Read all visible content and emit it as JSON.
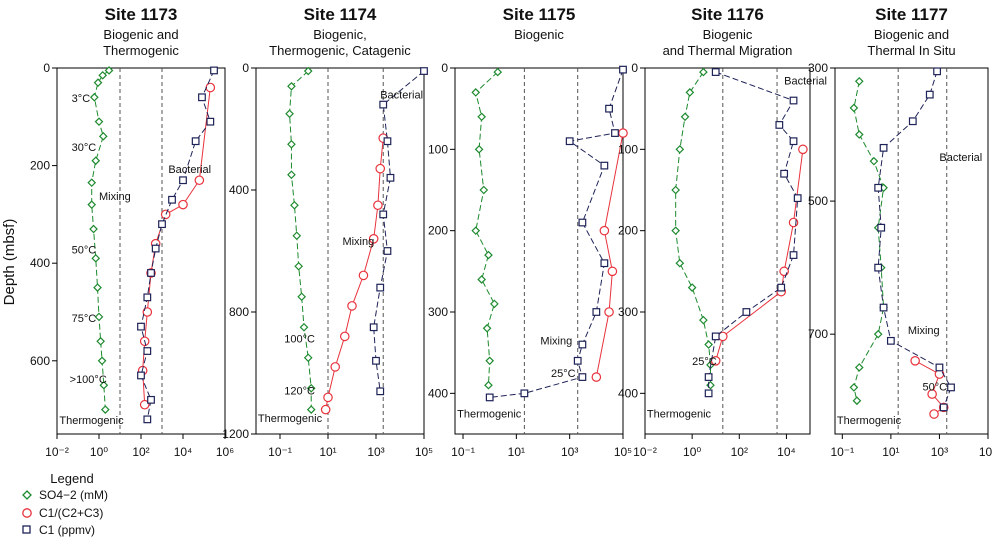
{
  "y_axis_label": "Depth (mbsf)",
  "legend": {
    "title": "Legend",
    "items": [
      {
        "label": "SO4−2 (mM)",
        "marker": "diamond",
        "color": "#1d8a2e"
      },
      {
        "label": "C1/(C2+C3)",
        "marker": "circle",
        "color": "#e8323c"
      },
      {
        "label": "C1 (ppmv)",
        "marker": "square",
        "color": "#1e2357"
      }
    ]
  },
  "chart_data": [
    {
      "type": "scatter",
      "title": "Site 1173",
      "subtitle": [
        "Biogenic and",
        "Thermogenic"
      ],
      "x_scale": "log",
      "xlim": [
        0.01,
        1000000
      ],
      "ylim": [
        750,
        0
      ],
      "x_ticks": [
        0.01,
        1,
        100,
        10000,
        1000000
      ],
      "x_tick_labels": [
        "10⁻²",
        "10⁰",
        "10²",
        "10⁴",
        "10⁶"
      ],
      "y_ticks": [
        0,
        200,
        400,
        600
      ],
      "y_tick_labels": [
        "0",
        "200",
        "400",
        "600"
      ],
      "dashed_x": [
        10,
        1000
      ],
      "annotations": [
        {
          "text": "3°C",
          "x": 0.05,
          "y": 70
        },
        {
          "text": "30°C",
          "x": 0.05,
          "y": 170
        },
        {
          "text": "Mixing",
          "x": 1.0,
          "y": 270
        },
        {
          "text": "Bacterial",
          "x": 2000,
          "y": 215
        },
        {
          "text": "50°C",
          "x": 0.05,
          "y": 380
        },
        {
          "text": "75°C",
          "x": 0.05,
          "y": 520
        },
        {
          "text": ">100°C",
          "x": 0.04,
          "y": 645
        },
        {
          "text": "Thermogenic",
          "x": 0.013,
          "y": 730
        }
      ],
      "series": [
        {
          "marker": "diamond",
          "values": [
            [
              3,
              5
            ],
            [
              1.5,
              15
            ],
            [
              0.9,
              30
            ],
            [
              0.6,
              60
            ],
            [
              1.0,
              110
            ],
            [
              1.6,
              140
            ],
            [
              0.7,
              190
            ],
            [
              0.45,
              235
            ],
            [
              0.45,
              280
            ],
            [
              0.55,
              330
            ],
            [
              0.7,
              390
            ],
            [
              0.85,
              450
            ],
            [
              1.0,
              510
            ],
            [
              1.2,
              560
            ],
            [
              1.4,
              600
            ],
            [
              1.7,
              650
            ],
            [
              2.0,
              700
            ]
          ]
        },
        {
          "marker": "circle",
          "values": [
            [
              200000,
              40
            ],
            [
              60000,
              230
            ],
            [
              10000,
              280
            ],
            [
              1500,
              300
            ],
            [
              500,
              360
            ],
            [
              300,
              420
            ],
            [
              200,
              500
            ],
            [
              150,
              560
            ],
            [
              120,
              620
            ],
            [
              150,
              690
            ]
          ]
        },
        {
          "marker": "square",
          "values": [
            [
              300000,
              5
            ],
            [
              80000,
              60
            ],
            [
              200000,
              110
            ],
            [
              40000,
              150
            ],
            [
              10000,
              230
            ],
            [
              3000,
              270
            ],
            [
              1000,
              320
            ],
            [
              500,
              370
            ],
            [
              300,
              420
            ],
            [
              200,
              470
            ],
            [
              100,
              530
            ],
            [
              200,
              580
            ],
            [
              100,
              630
            ],
            [
              300,
              680
            ],
            [
              200,
              720
            ]
          ]
        }
      ]
    },
    {
      "type": "scatter",
      "title": "Site 1174",
      "subtitle": [
        "Biogenic,",
        "Thermogenic, Catagenic"
      ],
      "x_scale": "log",
      "xlim": [
        0.01,
        100000
      ],
      "ylim": [
        1200,
        0
      ],
      "x_ticks": [
        0.1,
        10,
        1000,
        100000
      ],
      "x_tick_labels": [
        "10⁻¹",
        "10¹",
        "10³",
        "10⁵"
      ],
      "y_ticks": [
        0,
        400,
        800,
        1200
      ],
      "y_tick_labels": [
        "0",
        "400",
        "800",
        "1200"
      ],
      "dashed_x": [
        10,
        2000
      ],
      "annotations": [
        {
          "text": "Bacterial",
          "x": 1500,
          "y": 100
        },
        {
          "text": "Mixing",
          "x": 40,
          "y": 580
        },
        {
          "text": "100°C",
          "x": 0.15,
          "y": 900
        },
        {
          "text": "120°C",
          "x": 0.15,
          "y": 1070
        },
        {
          "text": "Thermogenic",
          "x": 0.012,
          "y": 1160
        }
      ],
      "series": [
        {
          "marker": "diamond",
          "values": [
            [
              1.5,
              10
            ],
            [
              0.3,
              60
            ],
            [
              0.25,
              150
            ],
            [
              0.3,
              250
            ],
            [
              0.3,
              350
            ],
            [
              0.4,
              450
            ],
            [
              0.5,
              550
            ],
            [
              0.6,
              650
            ],
            [
              0.8,
              750
            ],
            [
              1,
              850
            ],
            [
              1.5,
              950
            ],
            [
              2,
              1050
            ],
            [
              2,
              1120
            ]
          ]
        },
        {
          "marker": "circle",
          "values": [
            [
              2000,
              230
            ],
            [
              1500,
              330
            ],
            [
              1200,
              450
            ],
            [
              800,
              560
            ],
            [
              300,
              680
            ],
            [
              100,
              780
            ],
            [
              50,
              880
            ],
            [
              20,
              980
            ],
            [
              10,
              1080
            ],
            [
              8,
              1120
            ]
          ]
        },
        {
          "marker": "square",
          "values": [
            [
              100000,
              10
            ],
            [
              2000,
              120
            ],
            [
              3000,
              240
            ],
            [
              4000,
              360
            ],
            [
              2000,
              480
            ],
            [
              3000,
              600
            ],
            [
              1500,
              720
            ],
            [
              800,
              850
            ],
            [
              1000,
              960
            ],
            [
              1500,
              1060
            ]
          ]
        }
      ]
    },
    {
      "type": "scatter",
      "title": "Site 1175",
      "subtitle": [
        "Biogenic"
      ],
      "x_scale": "log",
      "xlim": [
        0.05,
        100000
      ],
      "ylim": [
        450,
        0
      ],
      "x_ticks": [
        0.1,
        10,
        1000,
        100000
      ],
      "x_tick_labels": [
        "10⁻¹",
        "10¹",
        "10³",
        "10⁵"
      ],
      "y_ticks": [
        0,
        100,
        200,
        300,
        400
      ],
      "y_tick_labels": [
        "0",
        "100",
        "200",
        "300",
        "400"
      ],
      "dashed_x": [
        20,
        2000
      ],
      "annotations": [
        {
          "text": "Mixing",
          "x": 80,
          "y": 340
        },
        {
          "text": "25°C",
          "x": 200,
          "y": 380
        },
        {
          "text": "Thermogenic",
          "x": 0.06,
          "y": 430
        }
      ],
      "series": [
        {
          "marker": "diamond",
          "values": [
            [
              2,
              5
            ],
            [
              0.3,
              30
            ],
            [
              0.5,
              60
            ],
            [
              0.4,
              100
            ],
            [
              0.6,
              150
            ],
            [
              0.3,
              200
            ],
            [
              0.9,
              230
            ],
            [
              0.5,
              260
            ],
            [
              1.5,
              290
            ],
            [
              0.8,
              320
            ],
            [
              1,
              360
            ],
            [
              0.9,
              390
            ]
          ]
        },
        {
          "marker": "circle",
          "values": [
            [
              100000,
              80
            ],
            [
              20000,
              200
            ],
            [
              40000,
              250
            ],
            [
              30000,
              300
            ],
            [
              10000,
              380
            ]
          ]
        },
        {
          "marker": "square",
          "values": [
            [
              100000,
              2
            ],
            [
              30000,
              50
            ],
            [
              50000,
              80
            ],
            [
              1000,
              90
            ],
            [
              20000,
              120
            ],
            [
              3000,
              190
            ],
            [
              20000,
              240
            ],
            [
              10000,
              300
            ],
            [
              3000,
              340
            ],
            [
              2000,
              360
            ],
            [
              3000,
              380
            ],
            [
              20,
              400
            ],
            [
              1,
              405
            ]
          ]
        }
      ]
    },
    {
      "type": "scatter",
      "title": "Site 1176",
      "subtitle": [
        "Biogenic",
        "and Thermal Migration"
      ],
      "x_scale": "log",
      "xlim": [
        0.01,
        100000
      ],
      "ylim": [
        450,
        0
      ],
      "x_ticks": [
        0.01,
        1,
        100,
        10000
      ],
      "x_tick_labels": [
        "10⁻²",
        "10⁰",
        "10²",
        "10⁴"
      ],
      "y_ticks": [
        0,
        100,
        200,
        300,
        400
      ],
      "y_tick_labels": [
        "0",
        "100",
        "200",
        "300",
        "400"
      ],
      "dashed_x": [
        20,
        4000
      ],
      "annotations": [
        {
          "text": "Bacterial",
          "x": 8000,
          "y": 20
        },
        {
          "text": "25°C",
          "x": 1,
          "y": 365
        },
        {
          "text": "Thermogenic",
          "x": 0.012,
          "y": 430
        }
      ],
      "series": [
        {
          "marker": "diamond",
          "values": [
            [
              3,
              5
            ],
            [
              0.8,
              30
            ],
            [
              0.5,
              60
            ],
            [
              0.3,
              100
            ],
            [
              0.2,
              150
            ],
            [
              0.2,
              200
            ],
            [
              0.3,
              240
            ],
            [
              1,
              270
            ],
            [
              3,
              310
            ],
            [
              5,
              340
            ],
            [
              6,
              365
            ],
            [
              6,
              390
            ]
          ]
        },
        {
          "marker": "circle",
          "values": [
            [
              50000,
              100
            ],
            [
              20000,
              190
            ],
            [
              8000,
              250
            ],
            [
              6000,
              275
            ],
            [
              20,
              330
            ],
            [
              10,
              360
            ]
          ]
        },
        {
          "marker": "square",
          "values": [
            [
              10,
              5
            ],
            [
              20000,
              40
            ],
            [
              5000,
              70
            ],
            [
              20000,
              90
            ],
            [
              8000,
              130
            ],
            [
              30000,
              160
            ],
            [
              20000,
              230
            ],
            [
              6000,
              270
            ],
            [
              200,
              300
            ],
            [
              10,
              330
            ],
            [
              5,
              380
            ],
            [
              5,
              400
            ]
          ]
        }
      ]
    },
    {
      "type": "scatter",
      "title": "Site 1177",
      "subtitle": [
        "Biogenic and",
        "Thermal In Situ"
      ],
      "x_scale": "log",
      "xlim": [
        0.05,
        100000
      ],
      "ylim": [
        850,
        300
      ],
      "x_ticks": [
        0.1,
        10,
        1000,
        100000
      ],
      "x_tick_labels": [
        "10⁻¹",
        "10¹",
        "10³",
        "10⁵"
      ],
      "y_ticks": [
        300,
        500,
        700
      ],
      "y_tick_labels": [
        "300",
        "500",
        "700"
      ],
      "dashed_x": [
        20,
        2000
      ],
      "annotations": [
        {
          "text": "Bacterial",
          "x": 1000,
          "y": 440
        },
        {
          "text": "Mixing",
          "x": 50,
          "y": 700
        },
        {
          "text": "50°C",
          "x": 200,
          "y": 785
        },
        {
          "text": "Thermogenic",
          "x": 0.06,
          "y": 835
        }
      ],
      "series": [
        {
          "marker": "diamond",
          "values": [
            [
              0.5,
              320
            ],
            [
              0.3,
              360
            ],
            [
              0.5,
              400
            ],
            [
              2,
              440
            ],
            [
              5,
              480
            ],
            [
              3,
              540
            ],
            [
              4,
              600
            ],
            [
              5,
              660
            ],
            [
              3,
              700
            ],
            [
              0.5,
              750
            ],
            [
              0.3,
              780
            ],
            [
              0.4,
              800
            ]
          ]
        },
        {
          "marker": "circle",
          "values": [
            [
              100,
              740
            ],
            [
              1000,
              760
            ],
            [
              500,
              790
            ],
            [
              1500,
              810
            ],
            [
              600,
              820
            ]
          ]
        },
        {
          "marker": "square",
          "values": [
            [
              800,
              305
            ],
            [
              400,
              340
            ],
            [
              80,
              380
            ],
            [
              5,
              420
            ],
            [
              3,
              480
            ],
            [
              4,
              540
            ],
            [
              3,
              600
            ],
            [
              5,
              660
            ],
            [
              10,
              710
            ],
            [
              1000,
              750
            ],
            [
              3000,
              780
            ],
            [
              1500,
              810
            ]
          ]
        }
      ]
    }
  ]
}
